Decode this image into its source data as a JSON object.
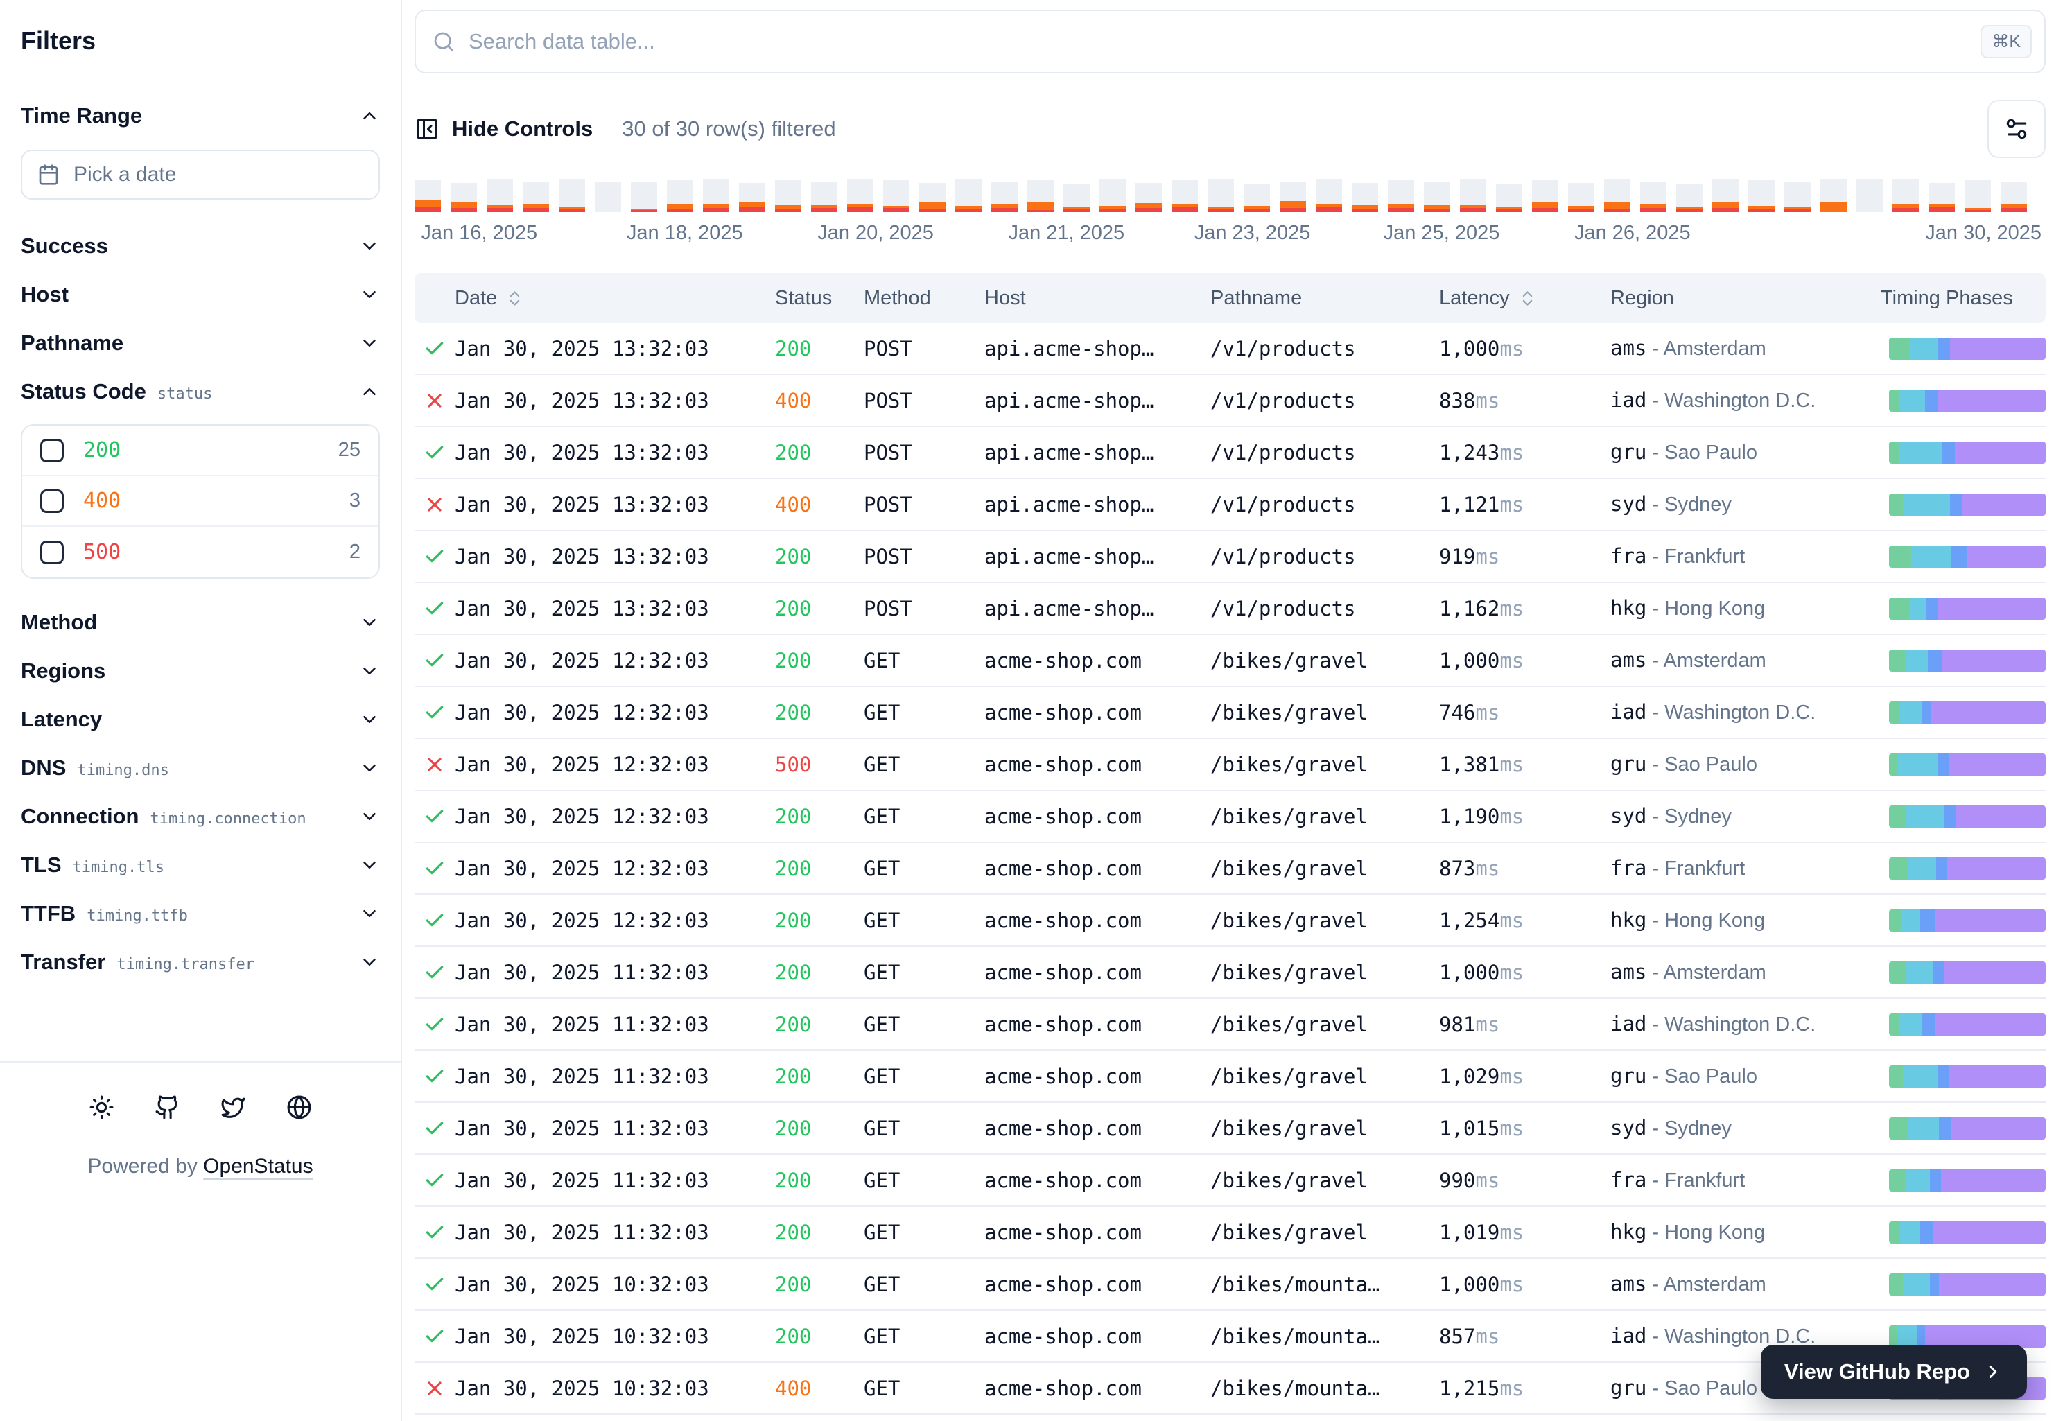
{
  "sidebar": {
    "title": "Filters",
    "time_range": {
      "label": "Time Range",
      "expanded": true,
      "picker_placeholder": "Pick a date"
    },
    "sections": [
      {
        "label": "Success",
        "expanded": false
      },
      {
        "label": "Host",
        "expanded": false
      },
      {
        "label": "Pathname",
        "expanded": false
      },
      {
        "label": "Status Code",
        "code": "status",
        "expanded": true,
        "options": [
          {
            "value": "200",
            "count": "25",
            "color": "#22c55e"
          },
          {
            "value": "400",
            "count": "3",
            "color": "#f97316"
          },
          {
            "value": "500",
            "count": "2",
            "color": "#ef4444"
          }
        ]
      },
      {
        "label": "Method",
        "expanded": false
      },
      {
        "label": "Regions",
        "expanded": false
      },
      {
        "label": "Latency",
        "expanded": false
      },
      {
        "label": "DNS",
        "code": "timing.dns",
        "expanded": false
      },
      {
        "label": "Connection",
        "code": "timing.connection",
        "expanded": false
      },
      {
        "label": "TLS",
        "code": "timing.tls",
        "expanded": false
      },
      {
        "label": "TTFB",
        "code": "timing.ttfb",
        "expanded": false
      },
      {
        "label": "Transfer",
        "code": "timing.transfer",
        "expanded": false
      }
    ],
    "footer": {
      "icons": [
        "sun-icon",
        "github-icon",
        "twitter-icon",
        "globe-icon"
      ],
      "powered_by": "Powered by",
      "brand": "OpenStatus"
    }
  },
  "toolbar": {
    "search_placeholder": "Search data table...",
    "kbd": "⌘K",
    "hide_controls_label": "Hide Controls",
    "filtered_text": "30 of 30 row(s) filtered"
  },
  "chart": {
    "type": "bar",
    "colors": {
      "base": "#eceff4",
      "degraded": "#f97316",
      "error": "#ef4444"
    },
    "labels": [
      "Jan 16, 2025",
      "Jan 18, 2025",
      "Jan 20, 2025",
      "Jan 21, 2025",
      "Jan 23, 2025",
      "Jan 25, 2025",
      "Jan 26, 2025",
      "Jan 30, 2025"
    ],
    "bars": [
      {
        "t": 46,
        "o": 10,
        "r": 7
      },
      {
        "t": 42,
        "o": 8,
        "r": 6
      },
      {
        "t": 48,
        "o": 4,
        "r": 6
      },
      {
        "t": 44,
        "o": 6,
        "r": 6
      },
      {
        "t": 48,
        "o": 3,
        "r": 4
      },
      {
        "t": 44,
        "o": 0,
        "r": 0
      },
      {
        "t": 44,
        "o": 2,
        "r": 3
      },
      {
        "t": 46,
        "o": 6,
        "r": 5
      },
      {
        "t": 48,
        "o": 5,
        "r": 6
      },
      {
        "t": 42,
        "o": 8,
        "r": 7
      },
      {
        "t": 46,
        "o": 5,
        "r": 5
      },
      {
        "t": 44,
        "o": 4,
        "r": 6
      },
      {
        "t": 48,
        "o": 4,
        "r": 8
      },
      {
        "t": 46,
        "o": 3,
        "r": 6
      },
      {
        "t": 42,
        "o": 10,
        "r": 4
      },
      {
        "t": 48,
        "o": 4,
        "r": 5
      },
      {
        "t": 44,
        "o": 5,
        "r": 6
      },
      {
        "t": 46,
        "o": 12,
        "r": 3
      },
      {
        "t": 40,
        "o": 3,
        "r": 4
      },
      {
        "t": 48,
        "o": 4,
        "r": 5
      },
      {
        "t": 42,
        "o": 7,
        "r": 6
      },
      {
        "t": 46,
        "o": 4,
        "r": 7
      },
      {
        "t": 48,
        "o": 3,
        "r": 5
      },
      {
        "t": 40,
        "o": 5,
        "r": 4
      },
      {
        "t": 44,
        "o": 10,
        "r": 6
      },
      {
        "t": 48,
        "o": 4,
        "r": 8
      },
      {
        "t": 42,
        "o": 6,
        "r": 4
      },
      {
        "t": 46,
        "o": 5,
        "r": 6
      },
      {
        "t": 44,
        "o": 5,
        "r": 5
      },
      {
        "t": 48,
        "o": 4,
        "r": 6
      },
      {
        "t": 40,
        "o": 4,
        "r": 4
      },
      {
        "t": 46,
        "o": 8,
        "r": 6
      },
      {
        "t": 42,
        "o": 4,
        "r": 5
      },
      {
        "t": 48,
        "o": 10,
        "r": 4
      },
      {
        "t": 44,
        "o": 5,
        "r": 6
      },
      {
        "t": 40,
        "o": 3,
        "r": 4
      },
      {
        "t": 48,
        "o": 8,
        "r": 6
      },
      {
        "t": 46,
        "o": 4,
        "r": 5
      },
      {
        "t": 44,
        "o": 3,
        "r": 4
      },
      {
        "t": 48,
        "o": 14,
        "r": 0
      },
      {
        "t": 48,
        "o": 0,
        "r": 0
      },
      {
        "t": 48,
        "o": 6,
        "r": 6
      },
      {
        "t": 42,
        "o": 5,
        "r": 7
      },
      {
        "t": 46,
        "o": 3,
        "r": 3
      },
      {
        "t": 44,
        "o": 6,
        "r": 6
      }
    ]
  },
  "table": {
    "columns": [
      {
        "label": "Date",
        "sortable": true
      },
      {
        "label": "Status",
        "sortable": false
      },
      {
        "label": "Method",
        "sortable": false
      },
      {
        "label": "Host",
        "sortable": false
      },
      {
        "label": "Pathname",
        "sortable": false
      },
      {
        "label": "Latency",
        "sortable": true
      },
      {
        "label": "Region",
        "sortable": false
      },
      {
        "label": "Timing Phases",
        "sortable": false
      }
    ],
    "latency_unit": "ms",
    "region_separator": " - ",
    "timing_colors": [
      "#74cf9e",
      "#68cbe3",
      "#6ba0f8",
      "#b18ff8"
    ],
    "rows": [
      {
        "ok": true,
        "date": "Jan 30, 2025 13:32:03",
        "status": "200",
        "method": "POST",
        "host": "api.acme-shop…",
        "path": "/v1/products",
        "latency": "1,000",
        "region_code": "ams",
        "region_name": "Amsterdam",
        "timing": [
          13,
          18,
          8,
          61
        ]
      },
      {
        "ok": false,
        "date": "Jan 30, 2025 13:32:03",
        "status": "400",
        "method": "POST",
        "host": "api.acme-shop…",
        "path": "/v1/products",
        "latency": "838",
        "region_code": "iad",
        "region_name": "Washington D.C.",
        "timing": [
          6,
          17,
          8,
          69
        ]
      },
      {
        "ok": true,
        "date": "Jan 30, 2025 13:32:03",
        "status": "200",
        "method": "POST",
        "host": "api.acme-shop…",
        "path": "/v1/products",
        "latency": "1,243",
        "region_code": "gru",
        "region_name": "Sao Paulo",
        "timing": [
          6,
          28,
          8,
          58
        ]
      },
      {
        "ok": false,
        "date": "Jan 30, 2025 13:32:03",
        "status": "400",
        "method": "POST",
        "host": "api.acme-shop…",
        "path": "/v1/products",
        "latency": "1,121",
        "region_code": "syd",
        "region_name": "Sydney",
        "timing": [
          9,
          30,
          8,
          53
        ]
      },
      {
        "ok": true,
        "date": "Jan 30, 2025 13:32:03",
        "status": "200",
        "method": "POST",
        "host": "api.acme-shop…",
        "path": "/v1/products",
        "latency": "919",
        "region_code": "fra",
        "region_name": "Frankfurt",
        "timing": [
          14,
          26,
          10,
          50
        ]
      },
      {
        "ok": true,
        "date": "Jan 30, 2025 13:32:03",
        "status": "200",
        "method": "POST",
        "host": "api.acme-shop…",
        "path": "/v1/products",
        "latency": "1,162",
        "region_code": "hkg",
        "region_name": "Hong Kong",
        "timing": [
          13,
          11,
          7,
          69
        ]
      },
      {
        "ok": true,
        "date": "Jan 30, 2025 12:32:03",
        "status": "200",
        "method": "GET",
        "host": "acme-shop.com",
        "path": "/bikes/gravel",
        "latency": "1,000",
        "region_code": "ams",
        "region_name": "Amsterdam",
        "timing": [
          10,
          15,
          9,
          66
        ]
      },
      {
        "ok": true,
        "date": "Jan 30, 2025 12:32:03",
        "status": "200",
        "method": "GET",
        "host": "acme-shop.com",
        "path": "/bikes/gravel",
        "latency": "746",
        "region_code": "iad",
        "region_name": "Washington D.C.",
        "timing": [
          7,
          14,
          6,
          73
        ]
      },
      {
        "ok": false,
        "date": "Jan 30, 2025 12:32:03",
        "status": "500",
        "method": "GET",
        "host": "acme-shop.com",
        "path": "/bikes/gravel",
        "latency": "1,381",
        "region_code": "gru",
        "region_name": "Sao Paulo",
        "timing": [
          5,
          26,
          7,
          62
        ]
      },
      {
        "ok": true,
        "date": "Jan 30, 2025 12:32:03",
        "status": "200",
        "method": "GET",
        "host": "acme-shop.com",
        "path": "/bikes/gravel",
        "latency": "1,190",
        "region_code": "syd",
        "region_name": "Sydney",
        "timing": [
          11,
          24,
          8,
          57
        ]
      },
      {
        "ok": true,
        "date": "Jan 30, 2025 12:32:03",
        "status": "200",
        "method": "GET",
        "host": "acme-shop.com",
        "path": "/bikes/gravel",
        "latency": "873",
        "region_code": "fra",
        "region_name": "Frankfurt",
        "timing": [
          12,
          18,
          7,
          63
        ]
      },
      {
        "ok": true,
        "date": "Jan 30, 2025 12:32:03",
        "status": "200",
        "method": "GET",
        "host": "acme-shop.com",
        "path": "/bikes/gravel",
        "latency": "1,254",
        "region_code": "hkg",
        "region_name": "Hong Kong",
        "timing": [
          8,
          12,
          9,
          71
        ]
      },
      {
        "ok": true,
        "date": "Jan 30, 2025 11:32:03",
        "status": "200",
        "method": "GET",
        "host": "acme-shop.com",
        "path": "/bikes/gravel",
        "latency": "1,000",
        "region_code": "ams",
        "region_name": "Amsterdam",
        "timing": [
          11,
          17,
          7,
          65
        ]
      },
      {
        "ok": true,
        "date": "Jan 30, 2025 11:32:03",
        "status": "200",
        "method": "GET",
        "host": "acme-shop.com",
        "path": "/bikes/gravel",
        "latency": "981",
        "region_code": "iad",
        "region_name": "Washington D.C.",
        "timing": [
          6,
          15,
          8,
          71
        ]
      },
      {
        "ok": true,
        "date": "Jan 30, 2025 11:32:03",
        "status": "200",
        "method": "GET",
        "host": "acme-shop.com",
        "path": "/bikes/gravel",
        "latency": "1,029",
        "region_code": "gru",
        "region_name": "Sao Paulo",
        "timing": [
          9,
          22,
          7,
          62
        ]
      },
      {
        "ok": true,
        "date": "Jan 30, 2025 11:32:03",
        "status": "200",
        "method": "GET",
        "host": "acme-shop.com",
        "path": "/bikes/gravel",
        "latency": "1,015",
        "region_code": "syd",
        "region_name": "Sydney",
        "timing": [
          12,
          20,
          8,
          60
        ]
      },
      {
        "ok": true,
        "date": "Jan 30, 2025 11:32:03",
        "status": "200",
        "method": "GET",
        "host": "acme-shop.com",
        "path": "/bikes/gravel",
        "latency": "990",
        "region_code": "fra",
        "region_name": "Frankfurt",
        "timing": [
          10,
          16,
          7,
          67
        ]
      },
      {
        "ok": true,
        "date": "Jan 30, 2025 11:32:03",
        "status": "200",
        "method": "GET",
        "host": "acme-shop.com",
        "path": "/bikes/gravel",
        "latency": "1,019",
        "region_code": "hkg",
        "region_name": "Hong Kong",
        "timing": [
          7,
          13,
          8,
          72
        ]
      },
      {
        "ok": true,
        "date": "Jan 30, 2025 10:32:03",
        "status": "200",
        "method": "GET",
        "host": "acme-shop.com",
        "path": "/bikes/mounta…",
        "latency": "1,000",
        "region_code": "ams",
        "region_name": "Amsterdam",
        "timing": [
          9,
          17,
          6,
          68
        ]
      },
      {
        "ok": true,
        "date": "Jan 30, 2025 10:32:03",
        "status": "200",
        "method": "GET",
        "host": "acme-shop.com",
        "path": "/bikes/mounta…",
        "latency": "857",
        "region_code": "iad",
        "region_name": "Washington D.C.",
        "timing": [
          5,
          13,
          5,
          77
        ]
      },
      {
        "ok": false,
        "date": "Jan 30, 2025 10:32:03",
        "status": "400",
        "method": "GET",
        "host": "acme-shop.com",
        "path": "/bikes/mounta…",
        "latency": "1,215",
        "region_code": "gru",
        "region_name": "Sao Paulo",
        "timing": [
          8,
          24,
          8,
          60
        ]
      }
    ]
  },
  "github_button": {
    "label": "View GitHub Repo"
  }
}
